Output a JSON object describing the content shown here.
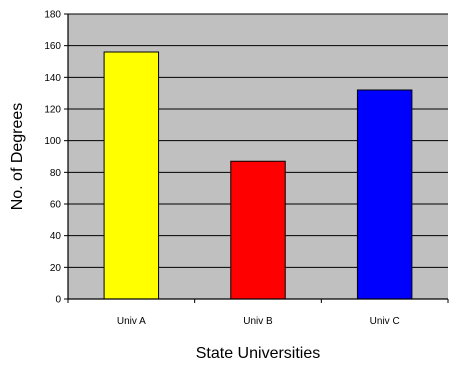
{
  "chart_data": {
    "type": "bar",
    "title": "",
    "xlabel": "State Universities",
    "ylabel": "No. of Degrees",
    "categories": [
      "Univ A",
      "Univ B",
      "Univ C"
    ],
    "values": [
      156,
      87,
      132
    ],
    "colors": [
      "#ffff00",
      "#ff0000",
      "#0000ff"
    ],
    "ylim": [
      0,
      180
    ],
    "yticks": [
      0,
      20,
      40,
      60,
      80,
      100,
      120,
      140,
      160,
      180
    ],
    "grid": true,
    "plot_background": "#c0c0c0",
    "legend": "none"
  }
}
